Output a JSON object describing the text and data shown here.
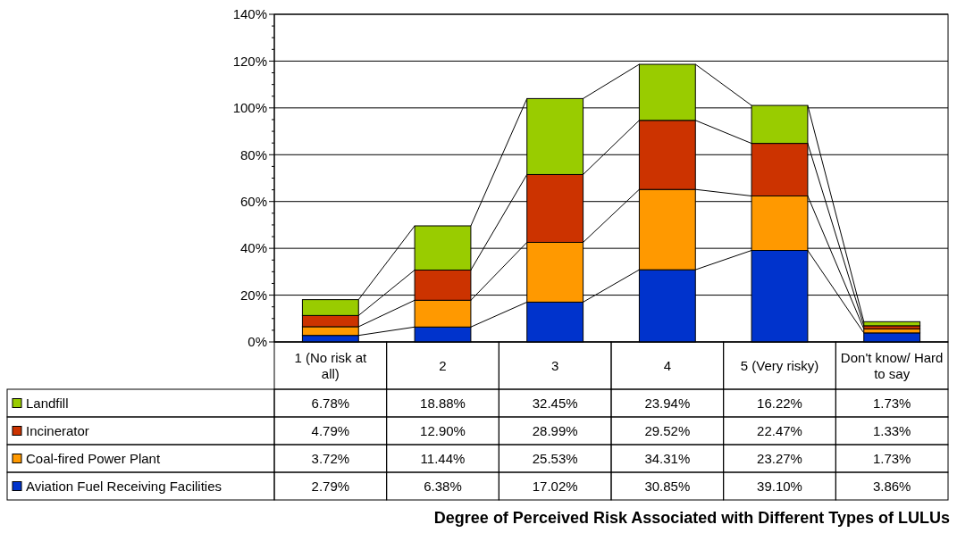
{
  "chart_data": {
    "type": "bar",
    "stacked": true,
    "title": "Degree of Perceived Risk Associated with Different Types of LULUs",
    "categories": [
      "1 (No risk at all)",
      "2",
      "3",
      "4",
      "5 (Very risky)",
      "Don't know/ Hard to say"
    ],
    "series": [
      {
        "name": "Aviation Fuel Receiving Facilities",
        "color": "#0033cc",
        "values": [
          2.79,
          6.38,
          17.02,
          30.85,
          39.1,
          3.86
        ],
        "value_labels": [
          "2.79%",
          "6.38%",
          "17.02%",
          "30.85%",
          "39.10%",
          "3.86%"
        ]
      },
      {
        "name": "Coal-fired Power Plant",
        "color": "#ff9900",
        "values": [
          3.72,
          11.44,
          25.53,
          34.31,
          23.27,
          1.73
        ],
        "value_labels": [
          "3.72%",
          "11.44%",
          "25.53%",
          "34.31%",
          "23.27%",
          "1.73%"
        ]
      },
      {
        "name": "Incinerator",
        "color": "#cc3300",
        "values": [
          4.79,
          12.9,
          28.99,
          29.52,
          22.47,
          1.33
        ],
        "value_labels": [
          "4.79%",
          "12.90%",
          "28.99%",
          "29.52%",
          "22.47%",
          "1.33%"
        ]
      },
      {
        "name": "Landfill",
        "color": "#99cc00",
        "values": [
          6.78,
          18.88,
          32.45,
          23.94,
          16.22,
          1.73
        ],
        "value_labels": [
          "6.78%",
          "18.88%",
          "32.45%",
          "23.94%",
          "16.22%",
          "1.73%"
        ]
      }
    ],
    "ylim": [
      0,
      140
    ],
    "yticks": [
      {
        "value": 0,
        "label": "0%"
      },
      {
        "value": 20,
        "label": "20%"
      },
      {
        "value": 40,
        "label": "40%"
      },
      {
        "value": 60,
        "label": "60%"
      },
      {
        "value": 80,
        "label": "80%"
      },
      {
        "value": 100,
        "label": "100%"
      },
      {
        "value": 120,
        "label": "120%"
      },
      {
        "value": 140,
        "label": "140%"
      }
    ],
    "grid": "y",
    "legend": "bottom left"
  }
}
